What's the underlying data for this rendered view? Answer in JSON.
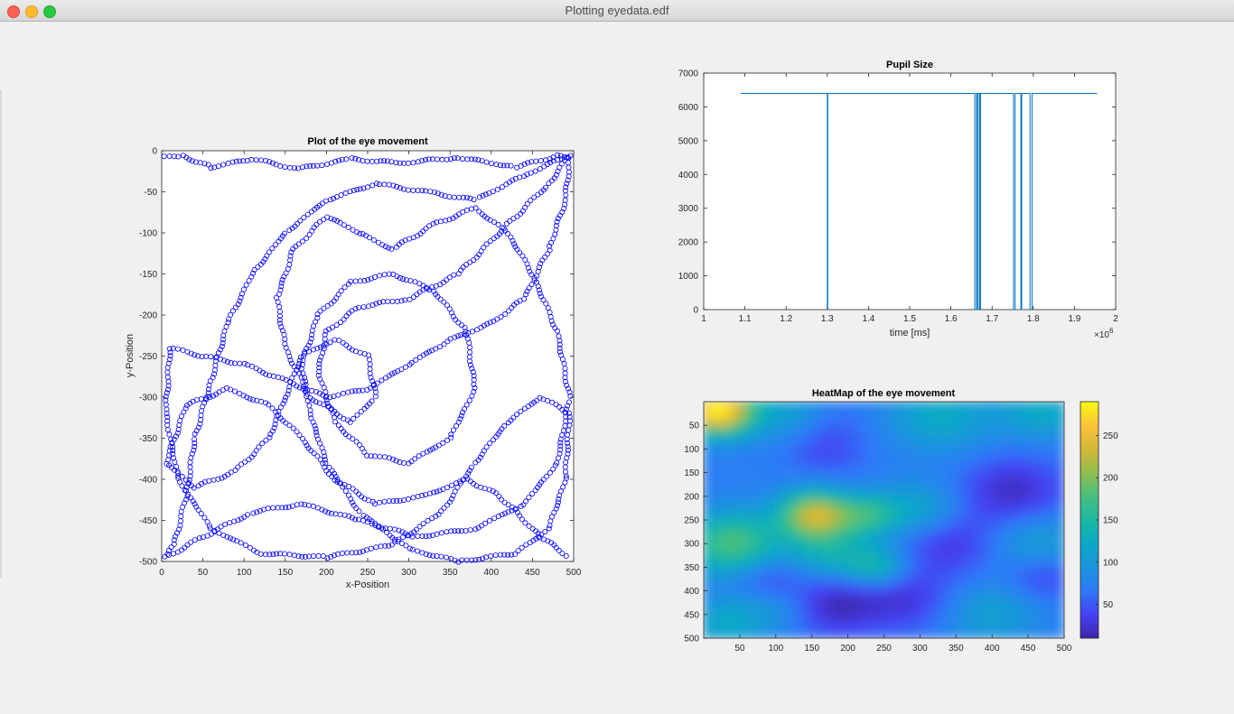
{
  "window": {
    "title": "Plotting eyedata.edf"
  },
  "chart_data": [
    {
      "type": "scatter",
      "title": "Plot of the eye movement",
      "xlabel": "x-Position",
      "ylabel": "y-Position",
      "xlim": [
        0,
        500
      ],
      "ylim": [
        -500,
        0
      ],
      "xticks": [
        "0",
        "50",
        "100",
        "150",
        "200",
        "250",
        "300",
        "350",
        "400",
        "450",
        "500"
      ],
      "yticks": [
        "0",
        "-50",
        "-100",
        "-150",
        "-200",
        "-250",
        "-300",
        "-350",
        "-400",
        "-450",
        "-500"
      ],
      "marker": "open-circle",
      "color": "#0000ff",
      "trajectory": [
        [
          3,
          -8
        ],
        [
          25,
          -6
        ],
        [
          60,
          -20
        ],
        [
          110,
          -10
        ],
        [
          165,
          -22
        ],
        [
          230,
          -10
        ],
        [
          290,
          -15
        ],
        [
          360,
          -8
        ],
        [
          430,
          -20
        ],
        [
          480,
          -6
        ],
        [
          495,
          -10
        ],
        [
          490,
          -60
        ],
        [
          470,
          -120
        ],
        [
          440,
          -180
        ],
        [
          400,
          -210
        ],
        [
          350,
          -230
        ],
        [
          300,
          -260
        ],
        [
          250,
          -290
        ],
        [
          200,
          -300
        ],
        [
          150,
          -280
        ],
        [
          100,
          -260
        ],
        [
          50,
          -250
        ],
        [
          10,
          -240
        ],
        [
          5,
          -320
        ],
        [
          20,
          -400
        ],
        [
          60,
          -460
        ],
        [
          120,
          -490
        ],
        [
          200,
          -495
        ],
        [
          280,
          -480
        ],
        [
          340,
          -440
        ],
        [
          380,
          -380
        ],
        [
          420,
          -330
        ],
        [
          460,
          -300
        ],
        [
          495,
          -320
        ],
        [
          490,
          -400
        ],
        [
          470,
          -460
        ],
        [
          430,
          -490
        ],
        [
          360,
          -500
        ],
        [
          300,
          -485
        ],
        [
          240,
          -440
        ],
        [
          200,
          -380
        ],
        [
          180,
          -320
        ],
        [
          170,
          -260
        ],
        [
          190,
          -200
        ],
        [
          230,
          -160
        ],
        [
          280,
          -150
        ],
        [
          330,
          -170
        ],
        [
          370,
          -220
        ],
        [
          380,
          -290
        ],
        [
          350,
          -350
        ],
        [
          300,
          -380
        ],
        [
          250,
          -370
        ],
        [
          210,
          -330
        ],
        [
          190,
          -270
        ],
        [
          200,
          -220
        ],
        [
          240,
          -190
        ],
        [
          300,
          -180
        ],
        [
          360,
          -150
        ],
        [
          420,
          -90
        ],
        [
          470,
          -40
        ],
        [
          495,
          -5
        ],
        [
          440,
          -30
        ],
        [
          380,
          -60
        ],
        [
          320,
          -50
        ],
        [
          260,
          -40
        ],
        [
          200,
          -60
        ],
        [
          150,
          -100
        ],
        [
          110,
          -150
        ],
        [
          80,
          -210
        ],
        [
          60,
          -280
        ],
        [
          40,
          -350
        ],
        [
          30,
          -420
        ],
        [
          15,
          -480
        ],
        [
          5,
          -495
        ],
        [
          50,
          -470
        ],
        [
          110,
          -440
        ],
        [
          170,
          -430
        ],
        [
          240,
          -450
        ],
        [
          310,
          -470
        ],
        [
          380,
          -460
        ],
        [
          440,
          -430
        ],
        [
          480,
          -380
        ],
        [
          495,
          -300
        ],
        [
          480,
          -220
        ],
        [
          450,
          -150
        ],
        [
          420,
          -100
        ],
        [
          380,
          -70
        ],
        [
          330,
          -90
        ],
        [
          280,
          -120
        ],
        [
          240,
          -100
        ],
        [
          200,
          -80
        ],
        [
          160,
          -120
        ],
        [
          140,
          -180
        ],
        [
          150,
          -240
        ],
        [
          180,
          -300
        ],
        [
          230,
          -330
        ],
        [
          260,
          -300
        ],
        [
          250,
          -250
        ],
        [
          210,
          -230
        ],
        [
          170,
          -250
        ],
        [
          150,
          -300
        ],
        [
          130,
          -350
        ],
        [
          90,
          -390
        ],
        [
          40,
          -410
        ],
        [
          5,
          -380
        ],
        [
          30,
          -310
        ],
        [
          80,
          -290
        ],
        [
          130,
          -310
        ],
        [
          170,
          -350
        ],
        [
          210,
          -400
        ],
        [
          260,
          -430
        ],
        [
          320,
          -420
        ],
        [
          370,
          -400
        ],
        [
          410,
          -420
        ],
        [
          460,
          -470
        ],
        [
          495,
          -495
        ]
      ]
    },
    {
      "type": "line",
      "title": "Pupil Size",
      "xlabel": "time [ms]",
      "x_exponent_label": "×10",
      "x_exponent": "6",
      "xlim": [
        1,
        2
      ],
      "ylim": [
        0,
        7000
      ],
      "xticks": [
        "1",
        "1.1",
        "1.2",
        "1.3",
        "1.4",
        "1.5",
        "1.6",
        "1.7",
        "1.8",
        "1.9",
        "2"
      ],
      "yticks": [
        "0",
        "1000",
        "2000",
        "3000",
        "4000",
        "5000",
        "6000",
        "7000"
      ],
      "color": "#0072bd",
      "points": [
        [
          1.09,
          6400
        ],
        [
          1.3,
          6400
        ],
        [
          1.3,
          0
        ],
        [
          1.301,
          0
        ],
        [
          1.301,
          6400
        ],
        [
          1.658,
          6400
        ],
        [
          1.658,
          0
        ],
        [
          1.662,
          0
        ],
        [
          1.662,
          6400
        ],
        [
          1.665,
          6400
        ],
        [
          1.665,
          0
        ],
        [
          1.666,
          0
        ],
        [
          1.666,
          6400
        ],
        [
          1.67,
          6400
        ],
        [
          1.67,
          0
        ],
        [
          1.672,
          0
        ],
        [
          1.672,
          6400
        ],
        [
          1.752,
          6400
        ],
        [
          1.752,
          0
        ],
        [
          1.756,
          0
        ],
        [
          1.756,
          6400
        ],
        [
          1.77,
          6400
        ],
        [
          1.77,
          0
        ],
        [
          1.772,
          0
        ],
        [
          1.772,
          6400
        ],
        [
          1.792,
          6400
        ],
        [
          1.792,
          0
        ],
        [
          1.797,
          0
        ],
        [
          1.797,
          6400
        ],
        [
          1.955,
          6400
        ]
      ]
    },
    {
      "type": "heatmap",
      "title": "HeatMap of the eye movement",
      "xlim": [
        0,
        500
      ],
      "ylim": [
        0,
        500
      ],
      "xticks": [
        "50",
        "100",
        "150",
        "200",
        "250",
        "300",
        "350",
        "400",
        "450",
        "500"
      ],
      "yticks": [
        "50",
        "100",
        "150",
        "200",
        "250",
        "300",
        "350",
        "400",
        "450",
        "500"
      ],
      "colorbar_ticks": [
        "50",
        "100",
        "150",
        "200",
        "250"
      ],
      "colorbar_range": [
        10,
        290
      ],
      "colormap": "parula",
      "base_value": 70,
      "hotspots": [
        {
          "x": 20,
          "y": 20,
          "value": 290,
          "spread": 35
        },
        {
          "x": 155,
          "y": 240,
          "value": 230,
          "spread": 35
        },
        {
          "x": 40,
          "y": 300,
          "value": 180,
          "spread": 45
        },
        {
          "x": 230,
          "y": 240,
          "value": 150,
          "spread": 30
        },
        {
          "x": 240,
          "y": 350,
          "value": 140,
          "spread": 30
        },
        {
          "x": 175,
          "y": 320,
          "value": 130,
          "spread": 40
        },
        {
          "x": 330,
          "y": 30,
          "value": 125,
          "spread": 50
        },
        {
          "x": 470,
          "y": 20,
          "value": 125,
          "spread": 40
        },
        {
          "x": 300,
          "y": 230,
          "value": 120,
          "spread": 40
        },
        {
          "x": 30,
          "y": 470,
          "value": 120,
          "spread": 35
        },
        {
          "x": 130,
          "y": 20,
          "value": 115,
          "spread": 45
        },
        {
          "x": 460,
          "y": 300,
          "value": 110,
          "spread": 45
        },
        {
          "x": 400,
          "y": 450,
          "value": 110,
          "spread": 45
        },
        {
          "x": 100,
          "y": 430,
          "value": 105,
          "spread": 40
        },
        {
          "x": 180,
          "y": 430,
          "value": 15,
          "spread": 45
        },
        {
          "x": 280,
          "y": 420,
          "value": 30,
          "spread": 45
        },
        {
          "x": 430,
          "y": 190,
          "value": 20,
          "spread": 50
        },
        {
          "x": 340,
          "y": 300,
          "value": 30,
          "spread": 50
        },
        {
          "x": 170,
          "y": 100,
          "value": 40,
          "spread": 40
        },
        {
          "x": 90,
          "y": 380,
          "value": 30,
          "spread": 35
        },
        {
          "x": 470,
          "y": 370,
          "value": 35,
          "spread": 35
        },
        {
          "x": 170,
          "y": 30,
          "value": 45,
          "spread": 35
        }
      ]
    }
  ]
}
